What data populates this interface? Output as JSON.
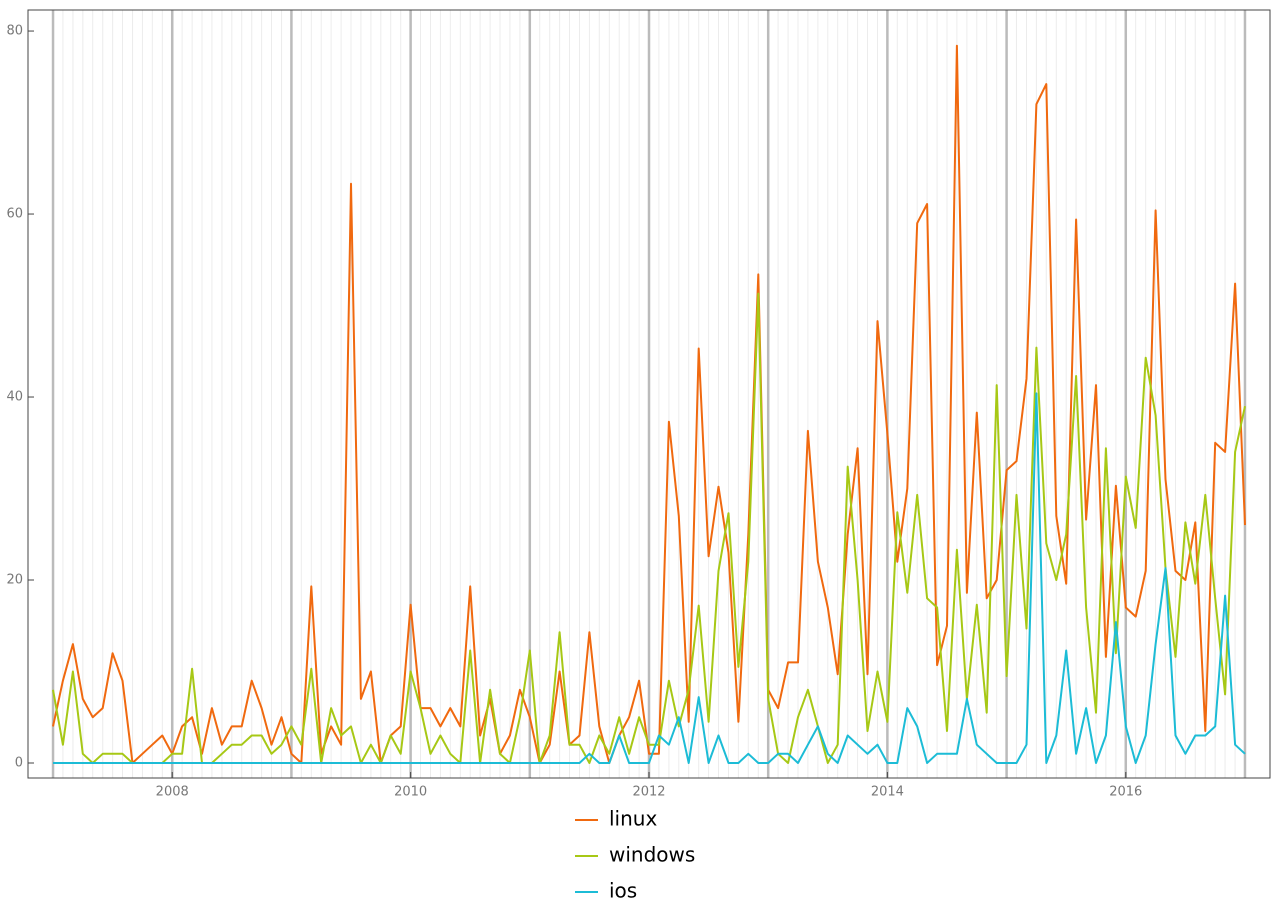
{
  "chart_data": {
    "type": "line",
    "x": [
      2007,
      2007.083,
      2007.167,
      2007.25,
      2007.333,
      2007.417,
      2007.5,
      2007.583,
      2007.667,
      2007.75,
      2007.833,
      2007.917,
      2008,
      2008.083,
      2008.167,
      2008.25,
      2008.333,
      2008.417,
      2008.5,
      2008.583,
      2008.667,
      2008.75,
      2008.833,
      2008.917,
      2009,
      2009.083,
      2009.167,
      2009.25,
      2009.333,
      2009.417,
      2009.5,
      2009.583,
      2009.667,
      2009.75,
      2009.833,
      2009.917,
      2010,
      2010.083,
      2010.167,
      2010.25,
      2010.333,
      2010.417,
      2010.5,
      2010.583,
      2010.667,
      2010.75,
      2010.833,
      2010.917,
      2011,
      2011.083,
      2011.167,
      2011.25,
      2011.333,
      2011.417,
      2011.5,
      2011.583,
      2011.667,
      2011.75,
      2011.833,
      2011.917,
      2012,
      2012.083,
      2012.167,
      2012.25,
      2012.333,
      2012.417,
      2012.5,
      2012.583,
      2012.667,
      2012.75,
      2012.833,
      2012.917,
      2013,
      2013.083,
      2013.167,
      2013.25,
      2013.333,
      2013.417,
      2013.5,
      2013.583,
      2013.667,
      2013.75,
      2013.833,
      2013.917,
      2014,
      2014.083,
      2014.167,
      2014.25,
      2014.333,
      2014.417,
      2014.5,
      2014.583,
      2014.667,
      2014.75,
      2014.833,
      2014.917,
      2015,
      2015.083,
      2015.167,
      2015.25,
      2015.333,
      2015.417,
      2015.5,
      2015.583,
      2015.667,
      2015.75,
      2015.833,
      2015.917,
      2016,
      2016.083,
      2016.167,
      2016.25,
      2016.333,
      2016.417,
      2016.5,
      2016.583,
      2016.667,
      2016.75,
      2016.833,
      2016.917,
      2017
    ],
    "series": [
      {
        "name": "linux",
        "color": "#f0690f",
        "values": [
          4,
          9,
          13,
          7,
          5,
          6,
          12,
          9,
          0,
          1,
          2,
          3,
          1,
          4,
          5,
          1,
          6,
          2,
          4,
          4,
          9,
          6,
          2,
          5,
          1,
          0,
          19.3,
          1,
          4,
          2,
          63.3,
          7,
          10,
          0,
          3,
          4,
          17.3,
          6,
          6,
          4,
          6,
          4,
          19.3,
          3,
          7,
          1,
          3,
          8,
          5,
          0,
          2,
          10,
          2,
          3,
          14.3,
          4,
          0,
          3,
          5,
          9,
          1,
          1,
          37.3,
          27,
          4.5,
          45.3,
          22.6,
          30.2,
          23,
          4.5,
          25,
          53.4,
          8,
          6,
          11,
          11,
          36.3,
          22,
          17,
          9.7,
          25,
          34.4,
          9.7,
          48.3,
          36,
          22,
          30,
          59,
          61.1,
          10.7,
          15,
          78.4,
          18.6,
          38.3,
          18,
          20,
          32,
          33,
          42,
          72,
          74.2,
          27,
          19.6,
          59.4,
          26.6,
          41.3,
          11.6,
          30.3,
          17,
          16,
          21,
          60.4,
          31,
          21,
          20,
          26.3,
          3.5,
          35,
          34,
          52.4,
          26
        ]
      },
      {
        "name": "windows",
        "color": "#a7c815",
        "values": [
          8,
          2,
          10,
          1,
          0,
          1,
          1,
          1,
          0,
          0,
          0,
          0,
          1,
          1,
          10.3,
          0,
          0,
          1,
          2,
          2,
          3,
          3,
          1,
          2,
          4,
          2,
          10.3,
          0,
          6,
          3,
          4,
          0,
          2,
          0,
          3,
          1,
          10,
          6,
          1,
          3,
          1,
          0,
          12.3,
          0,
          8,
          1,
          0,
          5,
          12.3,
          0,
          3,
          14.3,
          2,
          2,
          0,
          3,
          1,
          5,
          1,
          5,
          2,
          2,
          9,
          4,
          8,
          17.2,
          4.5,
          21,
          27.3,
          10.5,
          22,
          51.3,
          7,
          1,
          0,
          5,
          8,
          4,
          0,
          2,
          32.4,
          20,
          3.5,
          10,
          4.5,
          27.4,
          18.6,
          29.3,
          18,
          17,
          3.5,
          23.3,
          7,
          17.3,
          5.5,
          41.3,
          9.5,
          29.3,
          14.7,
          45.4,
          24,
          20,
          25,
          42.3,
          17,
          5.5,
          34.4,
          12,
          31.3,
          25.7,
          44.3,
          38,
          21.3,
          11.6,
          26.3,
          19.6,
          29.3,
          18,
          7.5,
          34,
          39
        ]
      },
      {
        "name": "ios",
        "color": "#1cbcd6",
        "values": [
          0,
          0,
          0,
          0,
          0,
          0,
          0,
          0,
          0,
          0,
          0,
          0,
          0,
          0,
          0,
          0,
          0,
          0,
          0,
          0,
          0,
          0,
          0,
          0,
          0,
          0,
          0,
          0,
          0,
          0,
          0,
          0,
          0,
          0,
          0,
          0,
          0,
          0,
          0,
          0,
          0,
          0,
          0,
          0,
          0,
          0,
          0,
          0,
          0,
          0,
          0,
          0,
          0,
          0,
          1,
          0,
          0,
          3,
          0,
          0,
          0,
          3,
          2,
          5,
          0,
          7.2,
          0,
          3,
          0,
          0,
          1,
          0,
          0,
          1,
          1,
          0,
          2,
          4,
          1,
          0,
          3,
          2,
          1,
          2,
          0,
          0,
          6,
          4,
          0,
          1,
          1,
          1,
          7,
          2,
          1,
          0,
          0,
          0,
          2,
          40.4,
          0,
          3,
          12.3,
          1,
          6,
          0,
          3,
          15.4,
          4,
          0,
          3,
          13,
          21.3,
          3,
          1,
          3,
          3,
          4,
          18.3,
          2,
          1
        ]
      }
    ],
    "xlim": [
      2006.79,
      2017.21
    ],
    "xticks": [
      2008,
      2010,
      2012,
      2014,
      2016
    ],
    "ylim": [
      -1.64,
      82.3
    ],
    "yticks": [
      0,
      20,
      40,
      60,
      80
    ],
    "grid": true
  }
}
